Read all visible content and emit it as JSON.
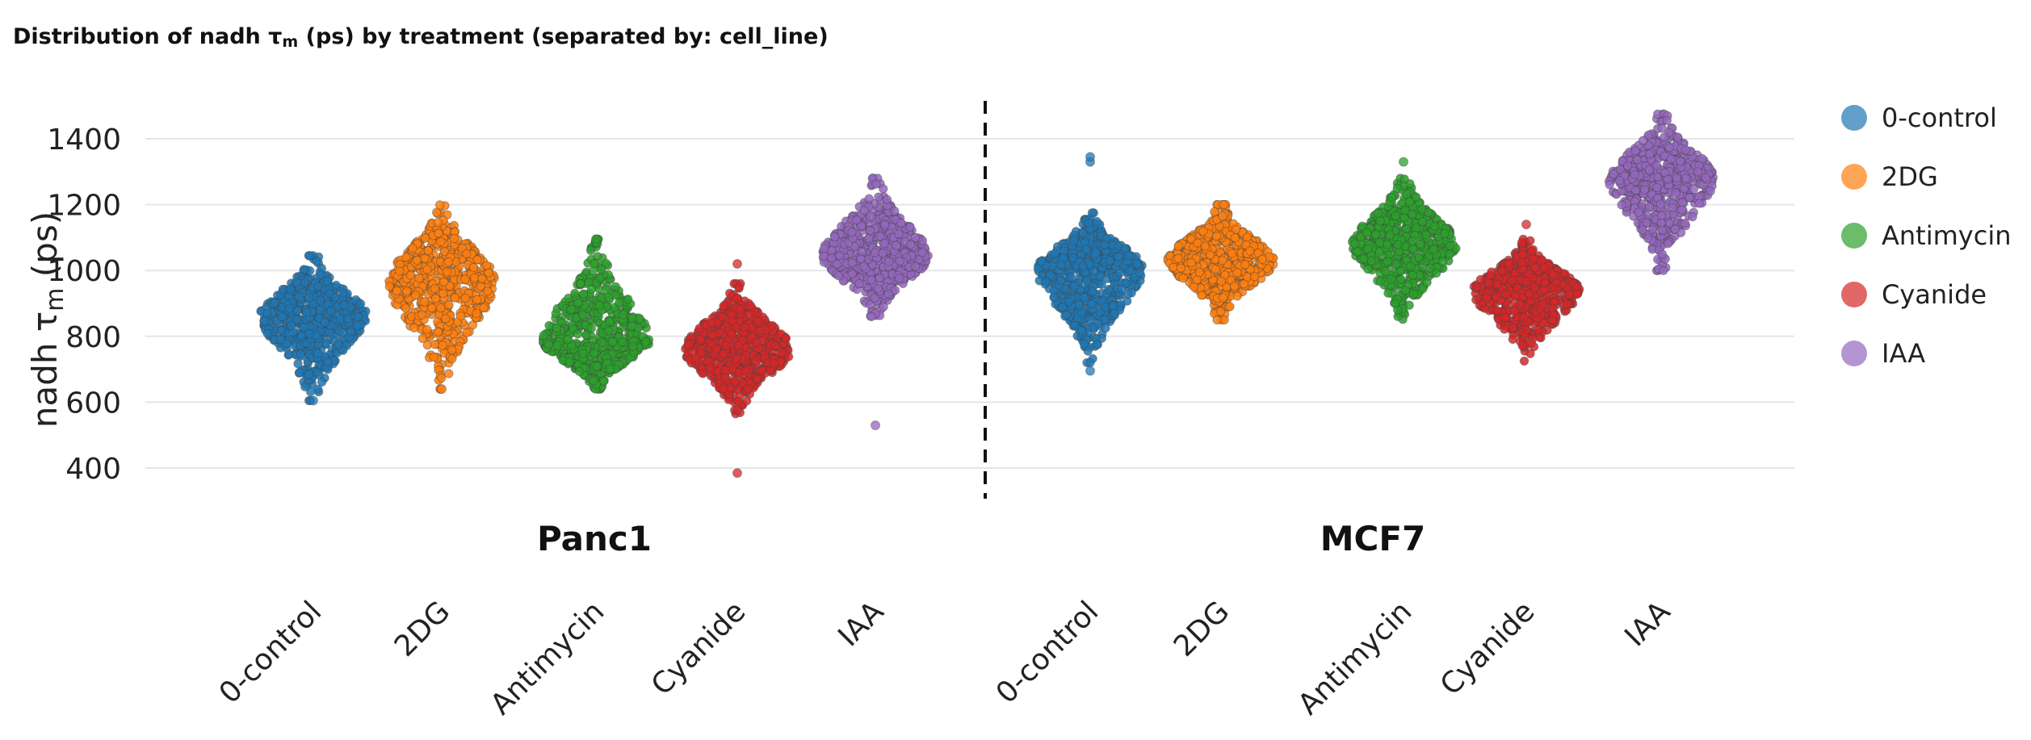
{
  "title": {
    "prefix": "Distribution of nadh τ",
    "sub": "m",
    "suffix": " (ps) by treatment (separated by: cell_line)"
  },
  "colors": {
    "0-control": "#1f77b4",
    "2DG": "#ff7f0e",
    "Antimycin": "#2ca02c",
    "Cyanide": "#d62728",
    "IAA": "#9467bd"
  },
  "chart_data": {
    "type": "scatter",
    "subtype": "swarm",
    "ylabel": "nadh τm (ps)",
    "ylim": [
      300,
      1500
    ],
    "yticks": [
      400,
      600,
      800,
      1000,
      1200,
      1400
    ],
    "grid": true,
    "legend_position": "right",
    "legend": [
      "0-control",
      "2DG",
      "Antimycin",
      "Cyanide",
      "IAA"
    ],
    "groups": [
      {
        "name": "Panc1",
        "categories": [
          {
            "label": "0-control",
            "center": 865,
            "min": 605,
            "max": 1045,
            "outliers": [
              605
            ]
          },
          {
            "label": "2DG",
            "center": 970,
            "min": 640,
            "max": 1200,
            "outliers": [
              640
            ]
          },
          {
            "label": "Antimycin",
            "center": 785,
            "min": 640,
            "max": 1095,
            "outliers": [
              1095
            ]
          },
          {
            "label": "Cyanide",
            "center": 760,
            "min": 565,
            "max": 960,
            "outliers": [
              385,
              1020
            ]
          },
          {
            "label": "IAA",
            "center": 1045,
            "min": 860,
            "max": 1280,
            "outliers": [
              530
            ]
          }
        ]
      },
      {
        "name": "MCF7",
        "categories": [
          {
            "label": "0-control",
            "center": 1005,
            "min": 720,
            "max": 1175,
            "outliers": [
              695,
              1330,
              1345
            ]
          },
          {
            "label": "2DG",
            "center": 1030,
            "min": 850,
            "max": 1200,
            "outliers": []
          },
          {
            "label": "Antimycin",
            "center": 1080,
            "min": 850,
            "max": 1280,
            "outliers": [
              1330
            ]
          },
          {
            "label": "Cyanide",
            "center": 940,
            "min": 725,
            "max": 1095,
            "outliers": [
              1140
            ]
          },
          {
            "label": "IAA",
            "center": 1280,
            "min": 1000,
            "max": 1475,
            "outliers": []
          }
        ]
      }
    ]
  }
}
